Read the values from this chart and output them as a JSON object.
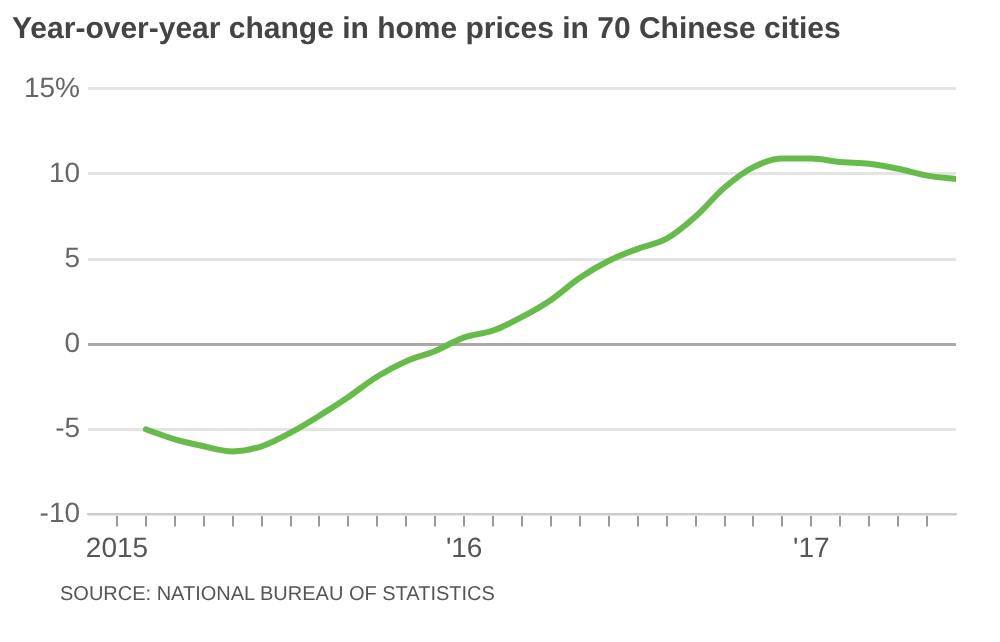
{
  "chart_data": {
    "type": "line",
    "title": "Year-over-year change in home prices in 70 Chinese cities",
    "annotations": [
      "SOURCE: NATIONAL BUREAU OF STATISTICS"
    ],
    "x": [
      "2015-02",
      "2015-03",
      "2015-04",
      "2015-05",
      "2015-06",
      "2015-07",
      "2015-08",
      "2015-09",
      "2015-10",
      "2015-11",
      "2015-12",
      "2016-01",
      "2016-02",
      "2016-03",
      "2016-04",
      "2016-05",
      "2016-06",
      "2016-07",
      "2016-08",
      "2016-09",
      "2016-10",
      "2016-11",
      "2016-12",
      "2017-01",
      "2017-02",
      "2017-03",
      "2017-04",
      "2017-05",
      "2017-06"
    ],
    "series": [
      {
        "color": "#66bb4a",
        "values": [
          -5.0,
          -5.6,
          -6.0,
          -6.3,
          -6.0,
          -5.2,
          -4.2,
          -3.1,
          -1.9,
          -1.0,
          -0.4,
          0.4,
          0.8,
          1.6,
          2.6,
          3.9,
          4.9,
          5.6,
          6.2,
          7.5,
          9.2,
          10.4,
          10.9,
          10.9,
          10.7,
          10.6,
          10.3,
          9.9,
          9.7
        ]
      }
    ],
    "xlim": [
      "2014-12",
      "2017-06"
    ],
    "xticks": [
      {
        "value": "2015-01",
        "label": "2015"
      },
      {
        "value": "2015-02",
        "label": null
      },
      {
        "value": "2015-03",
        "label": null
      },
      {
        "value": "2015-04",
        "label": null
      },
      {
        "value": "2015-05",
        "label": null
      },
      {
        "value": "2015-06",
        "label": null
      },
      {
        "value": "2015-07",
        "label": null
      },
      {
        "value": "2015-08",
        "label": null
      },
      {
        "value": "2015-09",
        "label": null
      },
      {
        "value": "2015-10",
        "label": null
      },
      {
        "value": "2015-11",
        "label": null
      },
      {
        "value": "2015-12",
        "label": null
      },
      {
        "value": "2016-01",
        "label": "'16"
      },
      {
        "value": "2016-02",
        "label": null
      },
      {
        "value": "2016-03",
        "label": null
      },
      {
        "value": "2016-04",
        "label": null
      },
      {
        "value": "2016-05",
        "label": null
      },
      {
        "value": "2016-06",
        "label": null
      },
      {
        "value": "2016-07",
        "label": null
      },
      {
        "value": "2016-08",
        "label": null
      },
      {
        "value": "2016-09",
        "label": null
      },
      {
        "value": "2016-10",
        "label": null
      },
      {
        "value": "2016-11",
        "label": null
      },
      {
        "value": "2016-12",
        "label": null
      },
      {
        "value": "2017-01",
        "label": "'17"
      },
      {
        "value": "2017-02",
        "label": null
      },
      {
        "value": "2017-03",
        "label": null
      },
      {
        "value": "2017-04",
        "label": null
      },
      {
        "value": "2017-05",
        "label": null
      }
    ],
    "ylim": [
      -10,
      15
    ],
    "yticks": [
      -10,
      -5,
      0,
      5,
      10,
      {
        "value": 15,
        "label": "15%"
      }
    ],
    "grid": "y",
    "marker": "none",
    "line_style": "solid"
  }
}
